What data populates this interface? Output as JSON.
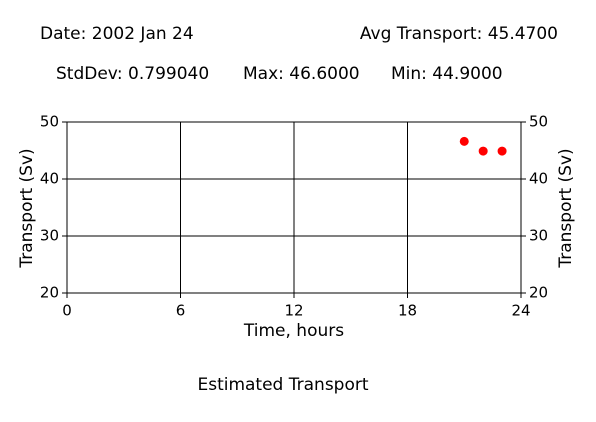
{
  "chart_data": {
    "type": "scatter",
    "title": "Estimated Transport",
    "annotations": [
      "Date: 2002 Jan 24",
      "Avg Transport: 45.4700",
      "StdDev: 0.799040",
      "Max: 46.6000",
      "Min: 44.9000"
    ],
    "xlabel": "Time, hours",
    "ylabel": "Transport (Sv)",
    "y2label": "Transport (Sv)",
    "x": [
      21,
      22,
      23
    ],
    "values": [
      46.6,
      44.9,
      44.9
    ],
    "color": "#ff0000",
    "xlim": [
      0,
      24
    ],
    "xticks": [
      0,
      6,
      12,
      18,
      24
    ],
    "ylim": [
      20,
      50
    ],
    "yticks": [
      20,
      30,
      40,
      50
    ],
    "y2lim": [
      20,
      50
    ],
    "y2ticks": [
      20,
      30,
      40,
      50
    ],
    "grid": true
  }
}
